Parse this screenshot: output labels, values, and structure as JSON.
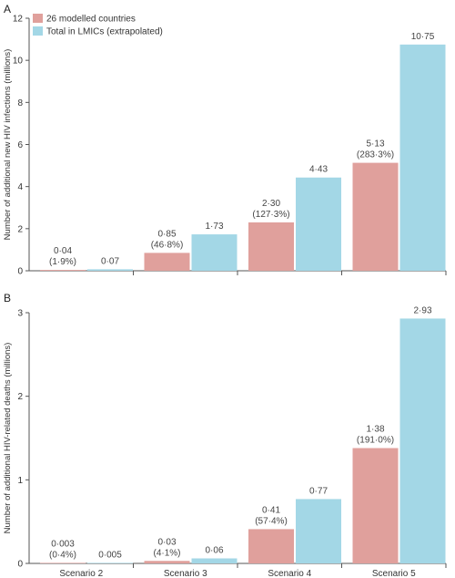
{
  "chart_data": [
    {
      "type": "bar",
      "panel": "A",
      "ylabel": "Number of additional new HIV infections (millions)",
      "ylim": [
        0,
        12
      ],
      "yticks": [
        "0",
        "2",
        "4",
        "6",
        "8",
        "10",
        "12"
      ],
      "categories": [
        "Scenario 2",
        "Scenario 3",
        "Scenario 4",
        "Scenario 5"
      ],
      "legend_position": "top-left",
      "series": [
        {
          "name": "26 modelled countries",
          "color": "#e0a09c",
          "values": [
            0.04,
            0.85,
            2.3,
            5.13
          ],
          "labels": [
            "0·04",
            "0·85",
            "2·30",
            "5·13"
          ],
          "sublabels": [
            "(1·9%)",
            "(46·8%)",
            "(127·3%)",
            "(283·3%)"
          ]
        },
        {
          "name": "Total in LMICs (extrapolated)",
          "color": "#a3d7e6",
          "values": [
            0.07,
            1.73,
            4.43,
            10.75
          ],
          "labels": [
            "0·07",
            "1·73",
            "4·43",
            "10·75"
          ]
        }
      ]
    },
    {
      "type": "bar",
      "panel": "B",
      "ylabel": "Number of additional HIV-related deaths (millions)",
      "ylim": [
        0,
        3
      ],
      "yticks": [
        "0",
        "1",
        "2",
        "3"
      ],
      "categories": [
        "Scenario 2",
        "Scenario 3",
        "Scenario 4",
        "Scenario 5"
      ],
      "series": [
        {
          "name": "26 modelled countries",
          "color": "#e0a09c",
          "values": [
            0.003,
            0.03,
            0.41,
            1.38
          ],
          "labels": [
            "0·003",
            "0·03",
            "0·41",
            "1·38"
          ],
          "sublabels": [
            "(0·4%)",
            "(4·1%)",
            "(57·4%)",
            "(191·0%)"
          ]
        },
        {
          "name": "Total in LMICs (extrapolated)",
          "color": "#a3d7e6",
          "values": [
            0.005,
            0.06,
            0.77,
            2.93
          ],
          "labels": [
            "0·005",
            "0·06",
            "0·77",
            "2·93"
          ]
        }
      ]
    }
  ]
}
